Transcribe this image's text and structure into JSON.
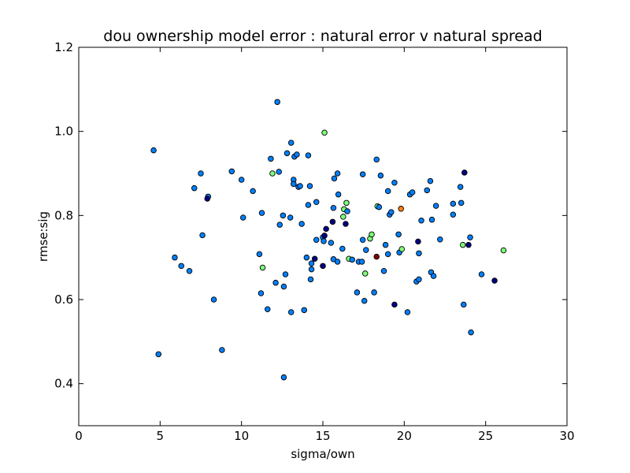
{
  "chart_data": {
    "type": "scatter",
    "title": "dou ownership model error : natural error v natural spread",
    "xlabel": "sigma/own",
    "ylabel": "rmse:sig",
    "xlim": [
      0,
      30
    ],
    "ylim": [
      0.3,
      1.2
    ],
    "xticks": [
      0,
      5,
      10,
      15,
      20,
      25,
      30
    ],
    "yticks": [
      0.4,
      0.6,
      0.8,
      1.0,
      1.2
    ],
    "xtick_labels": [
      "0",
      "5",
      "10",
      "15",
      "20",
      "25",
      "30"
    ],
    "ytick_labels": [
      "0.4",
      "0.6",
      "0.8",
      "1.0",
      "1.2"
    ],
    "grid": false,
    "colors": {
      "blue": "#0080ff",
      "navy": "#000080",
      "green": "#7dff7a",
      "orange": "#ff7f0e",
      "red": "#800000"
    },
    "points": [
      {
        "x": 4.6,
        "y": 0.955,
        "c": "blue"
      },
      {
        "x": 4.9,
        "y": 0.47,
        "c": "blue"
      },
      {
        "x": 5.9,
        "y": 0.7,
        "c": "blue"
      },
      {
        "x": 6.3,
        "y": 0.68,
        "c": "blue"
      },
      {
        "x": 6.8,
        "y": 0.668,
        "c": "blue"
      },
      {
        "x": 7.1,
        "y": 0.865,
        "c": "blue"
      },
      {
        "x": 7.5,
        "y": 0.9,
        "c": "blue"
      },
      {
        "x": 7.6,
        "y": 0.753,
        "c": "blue"
      },
      {
        "x": 7.95,
        "y": 0.845,
        "c": "blue"
      },
      {
        "x": 7.9,
        "y": 0.84,
        "c": "navy"
      },
      {
        "x": 8.3,
        "y": 0.6,
        "c": "blue"
      },
      {
        "x": 8.8,
        "y": 0.48,
        "c": "blue"
      },
      {
        "x": 9.4,
        "y": 0.905,
        "c": "blue"
      },
      {
        "x": 10.0,
        "y": 0.885,
        "c": "blue"
      },
      {
        "x": 10.1,
        "y": 0.795,
        "c": "blue"
      },
      {
        "x": 10.7,
        "y": 0.858,
        "c": "blue"
      },
      {
        "x": 11.1,
        "y": 0.708,
        "c": "blue"
      },
      {
        "x": 11.2,
        "y": 0.615,
        "c": "blue"
      },
      {
        "x": 11.25,
        "y": 0.806,
        "c": "blue"
      },
      {
        "x": 11.3,
        "y": 0.676,
        "c": "green"
      },
      {
        "x": 11.6,
        "y": 0.577,
        "c": "blue"
      },
      {
        "x": 11.8,
        "y": 0.935,
        "c": "blue"
      },
      {
        "x": 11.9,
        "y": 0.9,
        "c": "green"
      },
      {
        "x": 12.1,
        "y": 0.64,
        "c": "blue"
      },
      {
        "x": 12.2,
        "y": 1.07,
        "c": "blue"
      },
      {
        "x": 12.3,
        "y": 0.904,
        "c": "blue"
      },
      {
        "x": 12.35,
        "y": 0.778,
        "c": "blue"
      },
      {
        "x": 12.55,
        "y": 0.8,
        "c": "blue"
      },
      {
        "x": 12.6,
        "y": 0.415,
        "c": "blue"
      },
      {
        "x": 12.6,
        "y": 0.631,
        "c": "blue"
      },
      {
        "x": 12.7,
        "y": 0.66,
        "c": "blue"
      },
      {
        "x": 12.8,
        "y": 0.948,
        "c": "blue"
      },
      {
        "x": 13.0,
        "y": 0.795,
        "c": "blue"
      },
      {
        "x": 13.05,
        "y": 0.57,
        "c": "blue"
      },
      {
        "x": 13.05,
        "y": 0.973,
        "c": "blue"
      },
      {
        "x": 13.2,
        "y": 0.885,
        "c": "blue"
      },
      {
        "x": 13.2,
        "y": 0.875,
        "c": "blue"
      },
      {
        "x": 13.25,
        "y": 0.94,
        "c": "blue"
      },
      {
        "x": 13.4,
        "y": 0.945,
        "c": "blue"
      },
      {
        "x": 13.5,
        "y": 0.868,
        "c": "blue"
      },
      {
        "x": 13.6,
        "y": 0.87,
        "c": "blue"
      },
      {
        "x": 13.7,
        "y": 0.78,
        "c": "blue"
      },
      {
        "x": 13.85,
        "y": 0.575,
        "c": "blue"
      },
      {
        "x": 14.0,
        "y": 0.7,
        "c": "blue"
      },
      {
        "x": 14.1,
        "y": 0.825,
        "c": "blue"
      },
      {
        "x": 14.1,
        "y": 0.943,
        "c": "blue"
      },
      {
        "x": 14.2,
        "y": 0.87,
        "c": "blue"
      },
      {
        "x": 14.25,
        "y": 0.648,
        "c": "blue"
      },
      {
        "x": 14.3,
        "y": 0.672,
        "c": "blue"
      },
      {
        "x": 14.3,
        "y": 0.686,
        "c": "blue"
      },
      {
        "x": 14.5,
        "y": 0.697,
        "c": "navy"
      },
      {
        "x": 14.6,
        "y": 0.742,
        "c": "blue"
      },
      {
        "x": 14.6,
        "y": 0.832,
        "c": "blue"
      },
      {
        "x": 15.0,
        "y": 0.748,
        "c": "blue"
      },
      {
        "x": 15.0,
        "y": 0.68,
        "c": "navy"
      },
      {
        "x": 15.05,
        "y": 0.739,
        "c": "blue"
      },
      {
        "x": 15.1,
        "y": 0.997,
        "c": "green"
      },
      {
        "x": 15.1,
        "y": 0.752,
        "c": "navy"
      },
      {
        "x": 15.2,
        "y": 0.768,
        "c": "navy"
      },
      {
        "x": 15.5,
        "y": 0.735,
        "c": "blue"
      },
      {
        "x": 15.6,
        "y": 0.785,
        "c": "navy"
      },
      {
        "x": 15.65,
        "y": 0.818,
        "c": "blue"
      },
      {
        "x": 15.65,
        "y": 0.696,
        "c": "blue"
      },
      {
        "x": 15.7,
        "y": 0.888,
        "c": "blue"
      },
      {
        "x": 15.9,
        "y": 0.9,
        "c": "blue"
      },
      {
        "x": 15.9,
        "y": 0.69,
        "c": "blue"
      },
      {
        "x": 15.95,
        "y": 0.85,
        "c": "blue"
      },
      {
        "x": 16.2,
        "y": 0.721,
        "c": "blue"
      },
      {
        "x": 16.25,
        "y": 0.797,
        "c": "green"
      },
      {
        "x": 16.3,
        "y": 0.815,
        "c": "green"
      },
      {
        "x": 16.4,
        "y": 0.78,
        "c": "navy"
      },
      {
        "x": 16.45,
        "y": 0.83,
        "c": "green"
      },
      {
        "x": 16.5,
        "y": 0.81,
        "c": "blue"
      },
      {
        "x": 16.6,
        "y": 0.697,
        "c": "green"
      },
      {
        "x": 16.8,
        "y": 0.695,
        "c": "blue"
      },
      {
        "x": 17.1,
        "y": 0.617,
        "c": "blue"
      },
      {
        "x": 17.2,
        "y": 0.69,
        "c": "blue"
      },
      {
        "x": 17.4,
        "y": 0.69,
        "c": "blue"
      },
      {
        "x": 17.45,
        "y": 0.742,
        "c": "blue"
      },
      {
        "x": 17.45,
        "y": 0.898,
        "c": "blue"
      },
      {
        "x": 17.55,
        "y": 0.597,
        "c": "blue"
      },
      {
        "x": 17.6,
        "y": 0.662,
        "c": "green"
      },
      {
        "x": 17.65,
        "y": 0.718,
        "c": "blue"
      },
      {
        "x": 17.9,
        "y": 0.745,
        "c": "green"
      },
      {
        "x": 18.0,
        "y": 0.755,
        "c": "green"
      },
      {
        "x": 18.15,
        "y": 0.617,
        "c": "blue"
      },
      {
        "x": 18.3,
        "y": 0.702,
        "c": "red"
      },
      {
        "x": 18.3,
        "y": 0.933,
        "c": "blue"
      },
      {
        "x": 18.35,
        "y": 0.822,
        "c": "green"
      },
      {
        "x": 18.45,
        "y": 0.82,
        "c": "blue"
      },
      {
        "x": 18.55,
        "y": 0.895,
        "c": "blue"
      },
      {
        "x": 18.75,
        "y": 0.668,
        "c": "blue"
      },
      {
        "x": 18.85,
        "y": 0.73,
        "c": "blue"
      },
      {
        "x": 19.0,
        "y": 0.858,
        "c": "blue"
      },
      {
        "x": 19.0,
        "y": 0.708,
        "c": "blue"
      },
      {
        "x": 19.1,
        "y": 0.802,
        "c": "blue"
      },
      {
        "x": 19.2,
        "y": 0.808,
        "c": "blue"
      },
      {
        "x": 19.4,
        "y": 0.588,
        "c": "navy"
      },
      {
        "x": 19.4,
        "y": 0.878,
        "c": "blue"
      },
      {
        "x": 19.65,
        "y": 0.755,
        "c": "blue"
      },
      {
        "x": 19.7,
        "y": 0.712,
        "c": "blue"
      },
      {
        "x": 19.8,
        "y": 0.816,
        "c": "orange"
      },
      {
        "x": 19.85,
        "y": 0.72,
        "c": "green"
      },
      {
        "x": 20.2,
        "y": 0.57,
        "c": "blue"
      },
      {
        "x": 20.35,
        "y": 0.85,
        "c": "blue"
      },
      {
        "x": 20.5,
        "y": 0.855,
        "c": "blue"
      },
      {
        "x": 20.75,
        "y": 0.643,
        "c": "blue"
      },
      {
        "x": 20.85,
        "y": 0.738,
        "c": "navy"
      },
      {
        "x": 20.9,
        "y": 0.648,
        "c": "blue"
      },
      {
        "x": 20.9,
        "y": 0.71,
        "c": "blue"
      },
      {
        "x": 21.05,
        "y": 0.788,
        "c": "blue"
      },
      {
        "x": 21.4,
        "y": 0.86,
        "c": "blue"
      },
      {
        "x": 21.6,
        "y": 0.882,
        "c": "blue"
      },
      {
        "x": 21.65,
        "y": 0.665,
        "c": "blue"
      },
      {
        "x": 21.7,
        "y": 0.79,
        "c": "blue"
      },
      {
        "x": 21.8,
        "y": 0.656,
        "c": "blue"
      },
      {
        "x": 21.95,
        "y": 0.823,
        "c": "blue"
      },
      {
        "x": 22.2,
        "y": 0.743,
        "c": "blue"
      },
      {
        "x": 23.0,
        "y": 0.828,
        "c": "blue"
      },
      {
        "x": 23.0,
        "y": 0.802,
        "c": "blue"
      },
      {
        "x": 23.45,
        "y": 0.868,
        "c": "blue"
      },
      {
        "x": 23.5,
        "y": 0.83,
        "c": "blue"
      },
      {
        "x": 23.6,
        "y": 0.73,
        "c": "green"
      },
      {
        "x": 23.65,
        "y": 0.588,
        "c": "blue"
      },
      {
        "x": 23.7,
        "y": 0.902,
        "c": "navy"
      },
      {
        "x": 23.95,
        "y": 0.73,
        "c": "navy"
      },
      {
        "x": 24.05,
        "y": 0.748,
        "c": "blue"
      },
      {
        "x": 24.1,
        "y": 0.522,
        "c": "blue"
      },
      {
        "x": 24.75,
        "y": 0.66,
        "c": "blue"
      },
      {
        "x": 25.55,
        "y": 0.645,
        "c": "navy"
      },
      {
        "x": 26.1,
        "y": 0.717,
        "c": "green"
      }
    ]
  }
}
